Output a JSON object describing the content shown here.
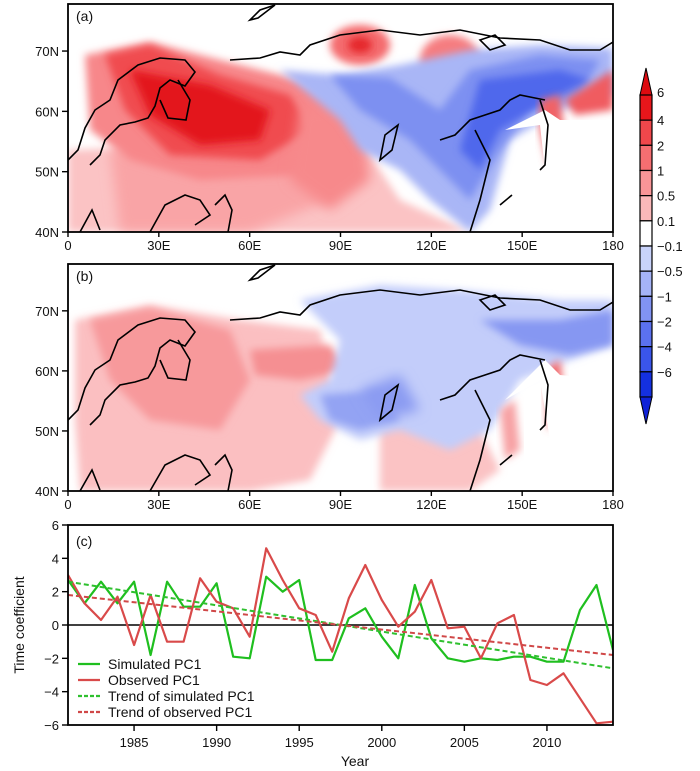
{
  "figure": {
    "panel_a_label": "(a)",
    "panel_b_label": "(b)",
    "panel_c_label": "(c)"
  },
  "maps": {
    "lat_ticks": [
      "40N",
      "50N",
      "60N",
      "70N"
    ],
    "lon_ticks": [
      "0",
      "30E",
      "60E",
      "90E",
      "120E",
      "150E",
      "180"
    ],
    "colorbar": {
      "levels": [
        "6",
        "4",
        "2",
        "1",
        "0.5",
        "0.1",
        "−0.1",
        "−0.5",
        "−1",
        "−2",
        "−4",
        "−6"
      ],
      "colors": [
        "#e8161b",
        "#f0474b",
        "#f56e71",
        "#f99597",
        "#fbb8b9",
        "#ffffff",
        "#c9d3fb",
        "#a5b3f7",
        "#8193f3",
        "#5b71ef",
        "#3a55ea",
        "#1430e0"
      ],
      "top_arrow_color": "#dd0b10",
      "bottom_arrow_color": "#0f22d8"
    },
    "panel_a_description": "Spatial pattern of simulated EOF1: strong positive (red) anomalies over Europe and western Russia 30E-90E, negative (blue) anomalies over central and eastern Siberia 90E-160E",
    "panel_b_description": "Spatial pattern of observed EOF1: positive (red) anomalies over Europe and western Russia, negative (blue) anomalies over Siberia and the Russian Far East"
  },
  "chart_data": {
    "type": "line",
    "title": "",
    "xlabel": "Year",
    "ylabel": "Time coefficient",
    "xlim": [
      1981,
      2014
    ],
    "ylim": [
      -6,
      6
    ],
    "x_ticks": [
      "1985",
      "1990",
      "1995",
      "2000",
      "2005",
      "2010"
    ],
    "x_tick_values": [
      1985,
      1990,
      1995,
      2000,
      2005,
      2010
    ],
    "y_ticks": [
      "−6",
      "−4",
      "−2",
      "0",
      "2",
      "4",
      "6"
    ],
    "y_tick_values": [
      -6,
      -4,
      -2,
      0,
      2,
      4,
      6
    ],
    "zero_line": true,
    "grid": false,
    "legend_position": "bottom-left",
    "x": [
      1981,
      1982,
      1983,
      1984,
      1985,
      1986,
      1987,
      1988,
      1989,
      1990,
      1991,
      1992,
      1993,
      1994,
      1995,
      1996,
      1997,
      1998,
      1999,
      2000,
      2001,
      2002,
      2003,
      2004,
      2005,
      2006,
      2007,
      2008,
      2009,
      2010,
      2011,
      2012,
      2013,
      2014
    ],
    "series": [
      {
        "name": "Simulated PC1",
        "style": "solid",
        "color": "#1fbf1f",
        "values": [
          2.7,
          1.3,
          2.6,
          1.3,
          2.6,
          -1.8,
          2.6,
          1.1,
          1.1,
          2.5,
          -1.9,
          -2.0,
          2.9,
          2.0,
          2.7,
          -2.1,
          -2.1,
          0.4,
          1.0,
          -0.7,
          -2.0,
          2.4,
          -0.8,
          -2.0,
          -2.2,
          -2.0,
          -2.1,
          -1.9,
          -1.9,
          -2.2,
          -2.2,
          0.9,
          2.4,
          -1.5
        ]
      },
      {
        "name": "Observed PC1",
        "style": "solid",
        "color": "#d94a4a",
        "values": [
          3.0,
          1.3,
          0.3,
          1.7,
          -1.2,
          1.8,
          -1.0,
          -1.0,
          2.8,
          1.4,
          1.0,
          -0.7,
          4.6,
          2.7,
          1.0,
          0.6,
          -1.6,
          1.6,
          3.6,
          1.5,
          -0.1,
          0.8,
          2.7,
          -0.2,
          -0.1,
          -2.0,
          0.1,
          0.6,
          -3.3,
          -3.6,
          -2.9,
          -4.4,
          -5.9,
          -5.8
        ]
      },
      {
        "name": "Trend of simulated PC1",
        "style": "dashed",
        "color": "#2fc02f",
        "endpoints": {
          "x": [
            1981,
            2014
          ],
          "y": [
            2.6,
            -2.6
          ]
        }
      },
      {
        "name": "Trend of observed PC1",
        "style": "dashed",
        "color": "#d04848",
        "endpoints": {
          "x": [
            1981,
            2014
          ],
          "y": [
            1.8,
            -1.8
          ]
        }
      }
    ]
  }
}
